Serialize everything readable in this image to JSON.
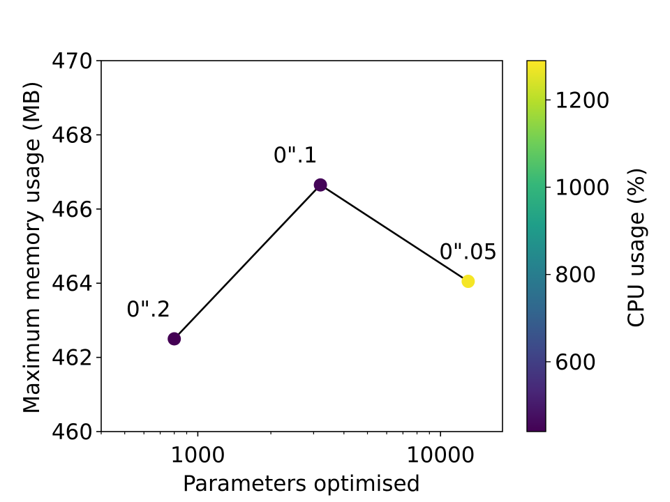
{
  "chart_data": {
    "type": "scatter",
    "xlabel": "Parameters optimised",
    "ylabel": "Maximum memory usage (MB)",
    "xscale": "log",
    "xlim": [
      400,
      18000
    ],
    "ylim": [
      460,
      470
    ],
    "x_ticks": [
      1000,
      10000
    ],
    "x_tick_labels": [
      "1000",
      "10000"
    ],
    "y_ticks": [
      460,
      462,
      464,
      466,
      468,
      470
    ],
    "y_tick_labels": [
      "460",
      "462",
      "464",
      "466",
      "468",
      "470"
    ],
    "grid": false,
    "points": [
      {
        "x": 800,
        "y": 462.5,
        "label": "0\".2",
        "cpu": 440
      },
      {
        "x": 3200,
        "y": 466.65,
        "label": "0\".1",
        "cpu": 450
      },
      {
        "x": 13000,
        "y": 464.05,
        "label": "0\".05",
        "cpu": 1280
      }
    ],
    "line_color": "#000000",
    "colorbar": {
      "label": "CPU usage (%)",
      "colormap": "viridis",
      "range": [
        440,
        1290
      ],
      "ticks": [
        600,
        800,
        1000,
        1200
      ],
      "tick_labels": [
        "600",
        "800",
        "1000",
        "1200"
      ],
      "stops": [
        "#440154",
        "#482878",
        "#3e4989",
        "#31688e",
        "#26828e",
        "#1f9e89",
        "#35b779",
        "#6ece58",
        "#b5de2b",
        "#fde725"
      ]
    }
  }
}
